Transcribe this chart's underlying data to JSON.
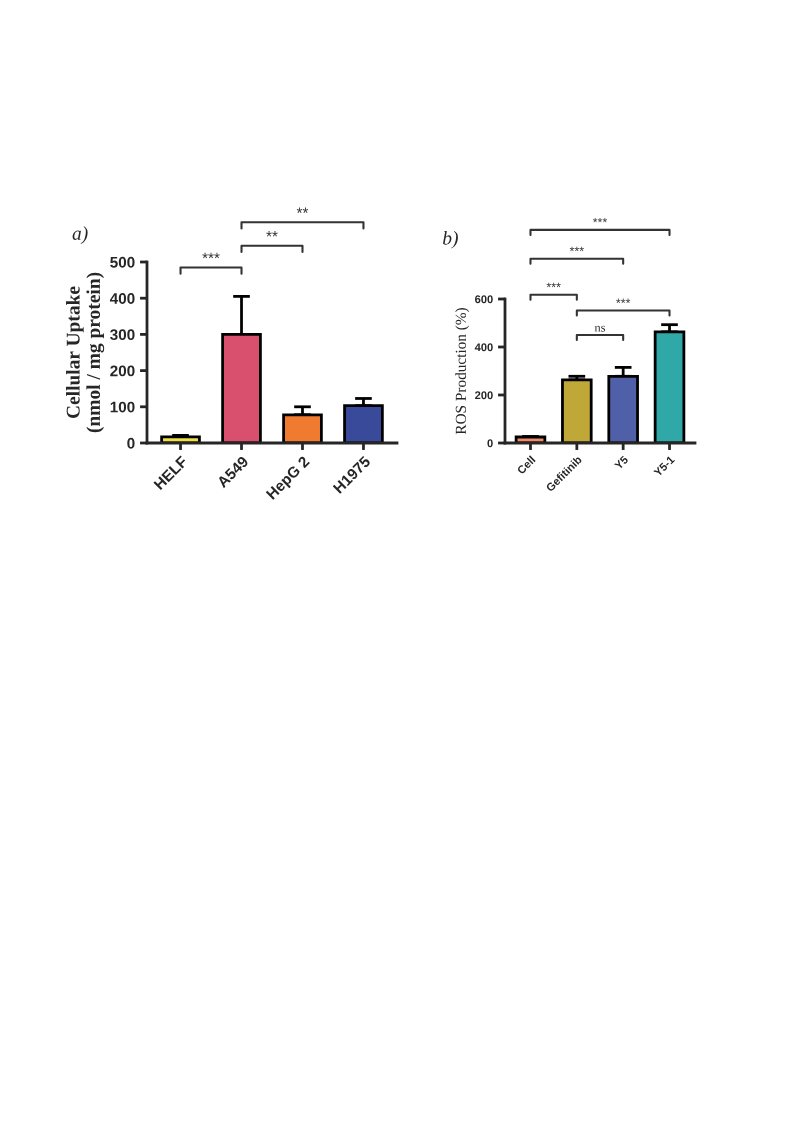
{
  "chart_data": [
    {
      "type": "bar",
      "title": "a)",
      "ylabel": "Cellular Uptake\n(nmol / mg protein)",
      "categories": [
        "HELF",
        "A549",
        "HepG 2",
        "H1975"
      ],
      "values": [
        17,
        300,
        78,
        103
      ],
      "errors": [
        [
          17,
          21
        ],
        [
          300,
          405
        ],
        [
          78,
          100
        ],
        [
          103,
          123
        ]
      ],
      "colors": [
        "#eee04a",
        "#d8506e",
        "#f07a30",
        "#3a4a9a"
      ],
      "ylim": [
        0,
        500
      ],
      "yticks": [
        0,
        100,
        200,
        300,
        400,
        500
      ],
      "grid": false,
      "legend": false,
      "annotations": [
        "***",
        "**",
        "**"
      ]
    },
    {
      "type": "bar",
      "title": "b)",
      "ylabel": "ROS Production (%)",
      "categories": [
        "Cell",
        "Gefitinib",
        "Y5",
        "Y5-1"
      ],
      "values": [
        25,
        263,
        278,
        463
      ],
      "errors": [
        [
          25,
          27
        ],
        [
          263,
          278
        ],
        [
          278,
          315
        ],
        [
          463,
          493
        ]
      ],
      "colors": [
        "#f08a68",
        "#c0a838",
        "#5060a8",
        "#30a8a8"
      ],
      "ylim": [
        0,
        600
      ],
      "yticks": [
        0,
        200,
        400,
        600
      ],
      "grid": false,
      "legend": false,
      "annotations": [
        "***",
        "***",
        "***",
        "***",
        "ns"
      ]
    }
  ]
}
